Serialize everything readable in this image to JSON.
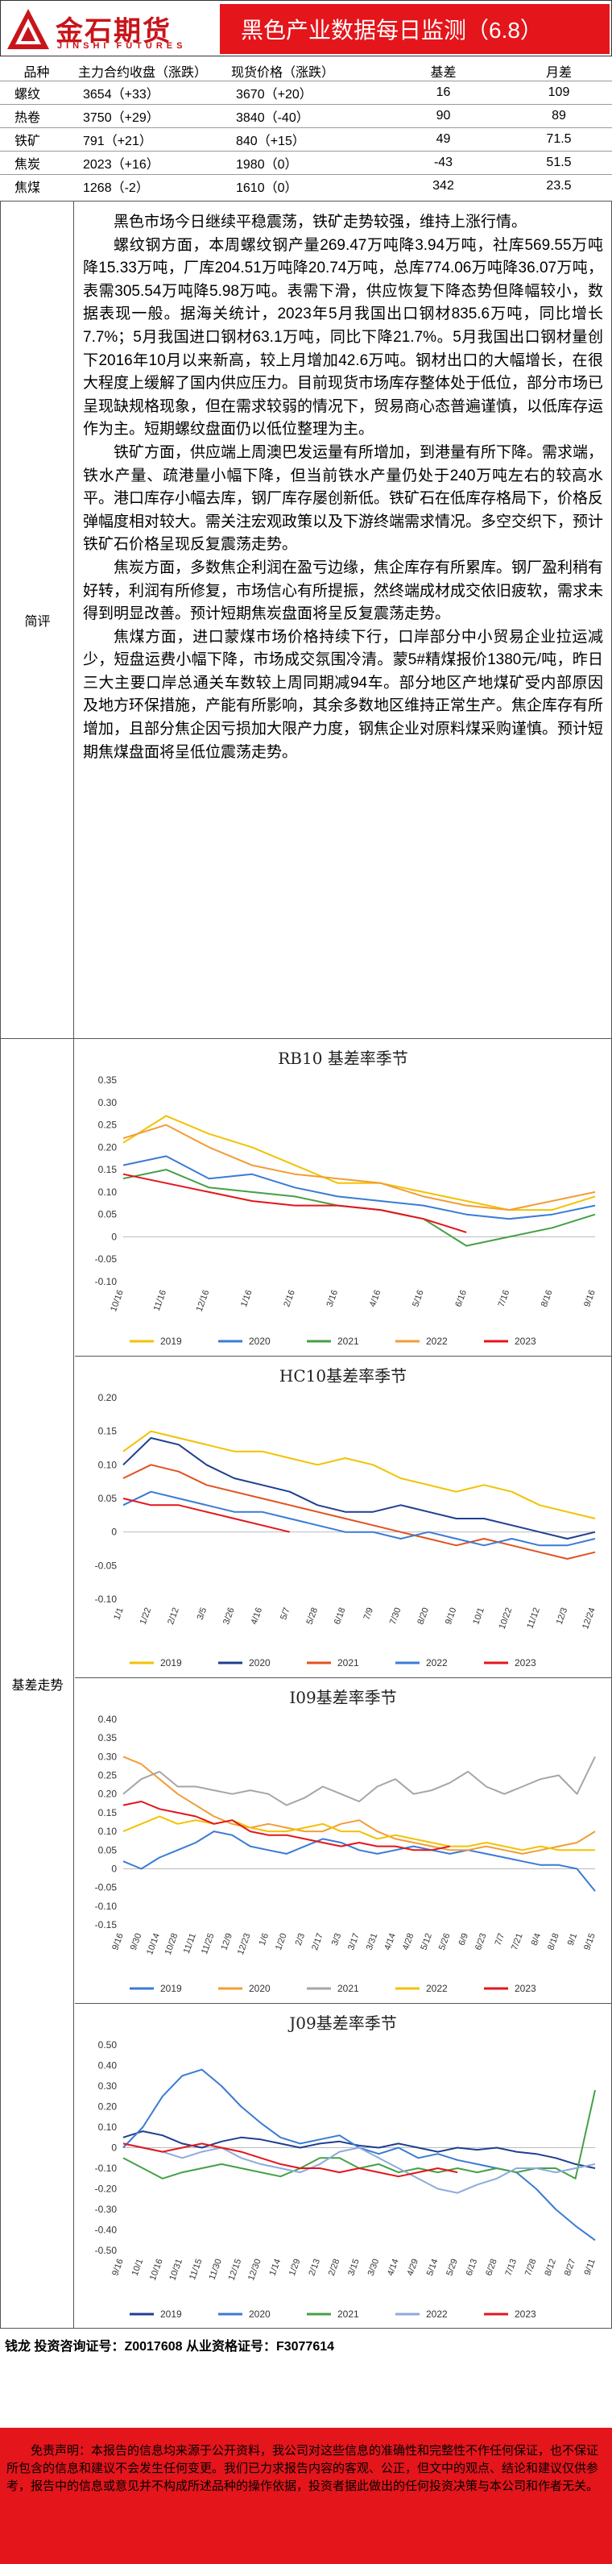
{
  "header": {
    "logo_cn": "金石期货",
    "logo_en": "JINSHI FUTURES",
    "title": "黑色产业数据每日监测（6.8）",
    "brand_color": "#e4151b"
  },
  "quotes": {
    "headers": [
      "品种",
      "主力合约收盘（涨跌）",
      "现货价格（涨跌）",
      "基差",
      "月差"
    ],
    "rows": [
      [
        "螺纹",
        "3654（+33）",
        "3670（+20）",
        "16",
        "109"
      ],
      [
        "热卷",
        "3750（+29）",
        "3840（-40）",
        "90",
        "89"
      ],
      [
        "铁矿",
        "791（+21）",
        "840（+15）",
        "49",
        "71.5"
      ],
      [
        "焦炭",
        "2023（+16）",
        "1980（0）",
        "-43",
        "51.5"
      ],
      [
        "焦煤",
        "1268（-2）",
        "1610（0）",
        "342",
        "23.5"
      ]
    ]
  },
  "commentary": {
    "label": "简评",
    "paragraphs": [
      "黑色市场今日继续平稳震荡，铁矿走势较强，维持上涨行情。",
      "螺纹钢方面，本周螺纹钢产量269.47万吨降3.94万吨，社库569.55万吨降15.33万吨，厂库204.51万吨降20.74万吨，总库774.06万吨降36.07万吨，表需305.54万吨降5.98万吨。表需下滑，供应恢复下降态势但降幅较小，数据表现一般。据海关统计，2023年5月我国出口钢材835.6万吨，同比增长7.7%；5月我国进口钢材63.1万吨，同比下降21.7%。5月我国出口钢材量创下2016年10月以来新高，较上月增加42.6万吨。钢材出口的大幅增长，在很大程度上缓解了国内供应压力。目前现货市场库存整体处于低位，部分市场已呈现缺规格现象，但在需求较弱的情况下，贸易商心态普遍谨慎，以低库存运作为主。短期螺纹盘面仍以低位整理为主。",
      "铁矿方面，供应端上周澳巴发运量有所增加，到港量有所下降。需求端，铁水产量、疏港量小幅下降，但当前铁水产量仍处于240万吨左右的较高水平。港口库存小幅去库，钢厂库存屡创新低。铁矿石在低库存格局下，价格反弹幅度相对较大。需关注宏观政策以及下游终端需求情况。多空交织下，预计铁矿石价格呈现反复震荡走势。",
      "焦炭方面，多数焦企利润在盈亏边缘，焦企库存有所累库。钢厂盈利稍有好转，利润有所修复，市场信心有所提振，然终端成材成交依旧疲软，需求未得到明显改善。预计短期焦炭盘面将呈反复震荡走势。",
      "焦煤方面，进口蒙煤市场价格持续下行，口岸部分中小贸易企业拉运减少，短盘运费小幅下降，市场成交氛围冷清。蒙5#精煤报价1380元/吨，昨日三大主要口岸总通关车数较上周同期减94车。部分地区产地煤矿受内部原因及地方环保措施，产能有所影响，其余多数地区维持正常生产。焦企库存有所增加，且部分焦企因亏损加大限产力度，钢焦企业对原料煤采购谨慎。预计短期焦煤盘面将呈低位震荡走势。"
    ]
  },
  "basis_section": {
    "label": "基差走势"
  },
  "chart_data": [
    {
      "type": "line",
      "title": "RB10 基差率季节",
      "x": [
        "10/16",
        "11/16",
        "12/16",
        "1/16",
        "2/16",
        "3/16",
        "4/16",
        "5/16",
        "6/16",
        "7/16",
        "8/16",
        "9/16"
      ],
      "ylim": [
        -0.1,
        0.35
      ],
      "yticks": [
        -0.1,
        -0.05,
        0,
        0.05,
        0.1,
        0.15,
        0.2,
        0.25,
        0.3,
        0.35
      ],
      "series": [
        {
          "name": "2019",
          "color": "#f2c200",
          "values": [
            0.21,
            0.27,
            0.23,
            0.2,
            0.16,
            0.12,
            0.12,
            0.1,
            0.08,
            0.06,
            0.06,
            0.09
          ]
        },
        {
          "name": "2020",
          "color": "#3a7bd5",
          "values": [
            0.16,
            0.18,
            0.13,
            0.14,
            0.11,
            0.09,
            0.08,
            0.07,
            0.05,
            0.04,
            0.05,
            0.07
          ]
        },
        {
          "name": "2021",
          "color": "#45a046",
          "values": [
            0.13,
            0.15,
            0.11,
            0.1,
            0.09,
            0.07,
            0.06,
            0.04,
            -0.02,
            0.0,
            0.02,
            0.05
          ]
        },
        {
          "name": "2022",
          "color": "#f39c38",
          "values": [
            0.22,
            0.25,
            0.2,
            0.16,
            0.14,
            0.13,
            0.12,
            0.09,
            0.07,
            0.06,
            0.08,
            0.1
          ]
        },
        {
          "name": "2023",
          "color": "#e4151b",
          "values": [
            0.14,
            0.12,
            0.1,
            0.08,
            0.07,
            0.07,
            0.06,
            0.04,
            0.01,
            null,
            null,
            null
          ]
        }
      ]
    },
    {
      "type": "line",
      "title": "HC10基差率季节",
      "x": [
        "1/1",
        "1/22",
        "2/12",
        "3/5",
        "3/26",
        "4/16",
        "5/7",
        "5/28",
        "6/18",
        "7/9",
        "7/30",
        "8/20",
        "9/10",
        "10/1",
        "10/22",
        "11/12",
        "12/3",
        "12/24"
      ],
      "ylim": [
        -0.1,
        0.2
      ],
      "yticks": [
        -0.1,
        -0.05,
        0,
        0.05,
        0.1,
        0.15,
        0.2
      ],
      "series": [
        {
          "name": "2019",
          "color": "#f2c200",
          "values": [
            0.12,
            0.15,
            0.14,
            0.13,
            0.12,
            0.12,
            0.11,
            0.1,
            0.11,
            0.1,
            0.08,
            0.07,
            0.06,
            0.07,
            0.06,
            0.04,
            0.03,
            0.02
          ]
        },
        {
          "name": "2020",
          "color": "#1f3f8f",
          "values": [
            0.1,
            0.14,
            0.13,
            0.1,
            0.08,
            0.07,
            0.06,
            0.04,
            0.03,
            0.03,
            0.04,
            0.03,
            0.02,
            0.02,
            0.01,
            0.0,
            -0.01,
            0.0
          ]
        },
        {
          "name": "2021",
          "color": "#e0531f",
          "values": [
            0.08,
            0.1,
            0.09,
            0.07,
            0.06,
            0.05,
            0.04,
            0.03,
            0.02,
            0.01,
            0.0,
            -0.01,
            -0.02,
            -0.01,
            -0.02,
            -0.03,
            -0.04,
            -0.03
          ]
        },
        {
          "name": "2022",
          "color": "#3a7bd5",
          "values": [
            0.04,
            0.06,
            0.05,
            0.04,
            0.03,
            0.03,
            0.02,
            0.01,
            0.0,
            0.0,
            -0.01,
            0.0,
            -0.01,
            -0.02,
            -0.01,
            -0.02,
            -0.02,
            -0.01
          ]
        },
        {
          "name": "2023",
          "color": "#e4151b",
          "values": [
            0.05,
            0.04,
            0.04,
            0.03,
            0.02,
            0.01,
            0.0,
            null,
            null,
            null,
            null,
            null,
            null,
            null,
            null,
            null,
            null,
            null
          ]
        }
      ]
    },
    {
      "type": "line",
      "title": "I09基差率季节",
      "x": [
        "9/16",
        "9/30",
        "10/14",
        "10/28",
        "11/11",
        "11/25",
        "12/9",
        "12/23",
        "1/6",
        "1/20",
        "2/3",
        "2/17",
        "3/3",
        "3/17",
        "3/31",
        "4/14",
        "4/28",
        "5/12",
        "5/26",
        "6/9",
        "6/23",
        "7/7",
        "7/21",
        "8/4",
        "8/18",
        "9/1",
        "9/15"
      ],
      "ylim": [
        -0.15,
        0.4
      ],
      "yticks": [
        -0.15,
        -0.1,
        -0.05,
        0,
        0.05,
        0.1,
        0.15,
        0.2,
        0.25,
        0.3,
        0.35,
        0.4
      ],
      "series": [
        {
          "name": "2019",
          "color": "#3a7bd5",
          "values": [
            0.02,
            0.0,
            0.03,
            0.05,
            0.07,
            0.1,
            0.09,
            0.06,
            0.05,
            0.04,
            0.06,
            0.08,
            0.07,
            0.05,
            0.04,
            0.05,
            0.06,
            0.05,
            0.04,
            0.05,
            0.04,
            0.03,
            0.02,
            0.01,
            0.01,
            0.0,
            -0.06
          ]
        },
        {
          "name": "2020",
          "color": "#f39c38",
          "values": [
            0.3,
            0.28,
            0.24,
            0.2,
            0.17,
            0.14,
            0.12,
            0.11,
            0.12,
            0.11,
            0.1,
            0.1,
            0.12,
            0.13,
            0.1,
            0.08,
            0.07,
            0.06,
            0.05,
            0.05,
            0.06,
            0.05,
            0.04,
            0.05,
            0.06,
            0.07,
            0.1
          ]
        },
        {
          "name": "2021",
          "color": "#a6a6a6",
          "values": [
            0.2,
            0.24,
            0.26,
            0.22,
            0.22,
            0.21,
            0.2,
            0.21,
            0.2,
            0.17,
            0.19,
            0.22,
            0.2,
            0.18,
            0.22,
            0.24,
            0.2,
            0.21,
            0.23,
            0.26,
            0.22,
            0.2,
            0.22,
            0.24,
            0.25,
            0.2,
            0.3
          ]
        },
        {
          "name": "2022",
          "color": "#f2c200",
          "values": [
            0.1,
            0.12,
            0.14,
            0.12,
            0.13,
            0.12,
            0.13,
            0.11,
            0.1,
            0.1,
            0.11,
            0.12,
            0.1,
            0.1,
            0.08,
            0.09,
            0.08,
            0.07,
            0.06,
            0.06,
            0.07,
            0.06,
            0.05,
            0.06,
            0.05,
            0.05,
            0.05
          ]
        },
        {
          "name": "2023",
          "color": "#e4151b",
          "values": [
            0.17,
            0.18,
            0.16,
            0.15,
            0.14,
            0.12,
            0.13,
            0.1,
            0.09,
            0.09,
            0.08,
            0.07,
            0.06,
            0.07,
            0.06,
            0.06,
            0.05,
            0.05,
            0.06,
            null,
            null,
            null,
            null,
            null,
            null,
            null,
            null
          ]
        }
      ]
    },
    {
      "type": "line",
      "title": "J09基差率季节",
      "x": [
        "9/16",
        "10/1",
        "10/16",
        "10/31",
        "11/15",
        "11/30",
        "12/15",
        "12/30",
        "1/14",
        "1/29",
        "2/13",
        "2/28",
        "3/15",
        "3/30",
        "4/14",
        "4/29",
        "5/14",
        "5/29",
        "6/13",
        "6/28",
        "7/13",
        "7/28",
        "8/12",
        "8/27",
        "9/11"
      ],
      "ylim": [
        -0.5,
        0.5
      ],
      "yticks": [
        -0.5,
        -0.4,
        -0.3,
        -0.2,
        -0.1,
        0,
        0.1,
        0.2,
        0.3,
        0.4,
        0.5
      ],
      "series": [
        {
          "name": "2019",
          "color": "#1f3f8f",
          "values": [
            0.05,
            0.08,
            0.06,
            0.02,
            0.0,
            0.03,
            0.05,
            0.04,
            0.02,
            0.0,
            0.02,
            0.03,
            0.01,
            0.0,
            0.02,
            0.0,
            -0.02,
            0.0,
            -0.01,
            0.0,
            -0.02,
            -0.03,
            -0.05,
            -0.08,
            -0.1
          ]
        },
        {
          "name": "2020",
          "color": "#3a7bd5",
          "values": [
            0.0,
            0.1,
            0.25,
            0.35,
            0.38,
            0.3,
            0.2,
            0.12,
            0.05,
            0.02,
            0.04,
            0.06,
            0.0,
            -0.03,
            0.0,
            -0.05,
            -0.03,
            -0.06,
            -0.08,
            -0.1,
            -0.12,
            -0.2,
            -0.3,
            -0.38,
            -0.45
          ]
        },
        {
          "name": "2021",
          "color": "#45a046",
          "values": [
            -0.05,
            -0.1,
            -0.15,
            -0.12,
            -0.1,
            -0.08,
            -0.1,
            -0.12,
            -0.14,
            -0.1,
            -0.05,
            -0.05,
            -0.1,
            -0.08,
            -0.12,
            -0.1,
            -0.12,
            -0.1,
            -0.12,
            -0.1,
            -0.12,
            -0.1,
            -0.1,
            -0.15,
            0.28
          ]
        },
        {
          "name": "2022",
          "color": "#8eaadb",
          "values": [
            0.02,
            0.0,
            -0.02,
            -0.05,
            -0.02,
            0.0,
            -0.05,
            -0.08,
            -0.1,
            -0.12,
            -0.08,
            -0.02,
            0.0,
            -0.05,
            -0.1,
            -0.15,
            -0.2,
            -0.22,
            -0.18,
            -0.15,
            -0.1,
            -0.1,
            -0.12,
            -0.1,
            -0.08
          ]
        },
        {
          "name": "2023",
          "color": "#e4151b",
          "values": [
            0.02,
            0.0,
            -0.02,
            0.0,
            0.02,
            0.0,
            -0.02,
            -0.05,
            -0.08,
            -0.1,
            -0.1,
            -0.12,
            -0.1,
            -0.12,
            -0.14,
            -0.12,
            -0.1,
            -0.12,
            null,
            null,
            null,
            null,
            null,
            null,
            null
          ]
        }
      ]
    }
  ],
  "footer": {
    "analyst_line": "钱龙 投资咨询证号：Z0017608 从业资格证号：F3077614",
    "disclaimer": "免责声明：本报告的信息均来源于公开资料，我公司对这些信息的准确性和完整性不作任何保证，也不保证所包含的信息和建议不会发生任何变更。我们已力求报告内容的客观、公正，但文中的观点、结论和建议仅供参考，报告中的信息或意见并不构成所述品种的操作依据，投资者据此做出的任何投资决策与本公司和作者无关。"
  }
}
